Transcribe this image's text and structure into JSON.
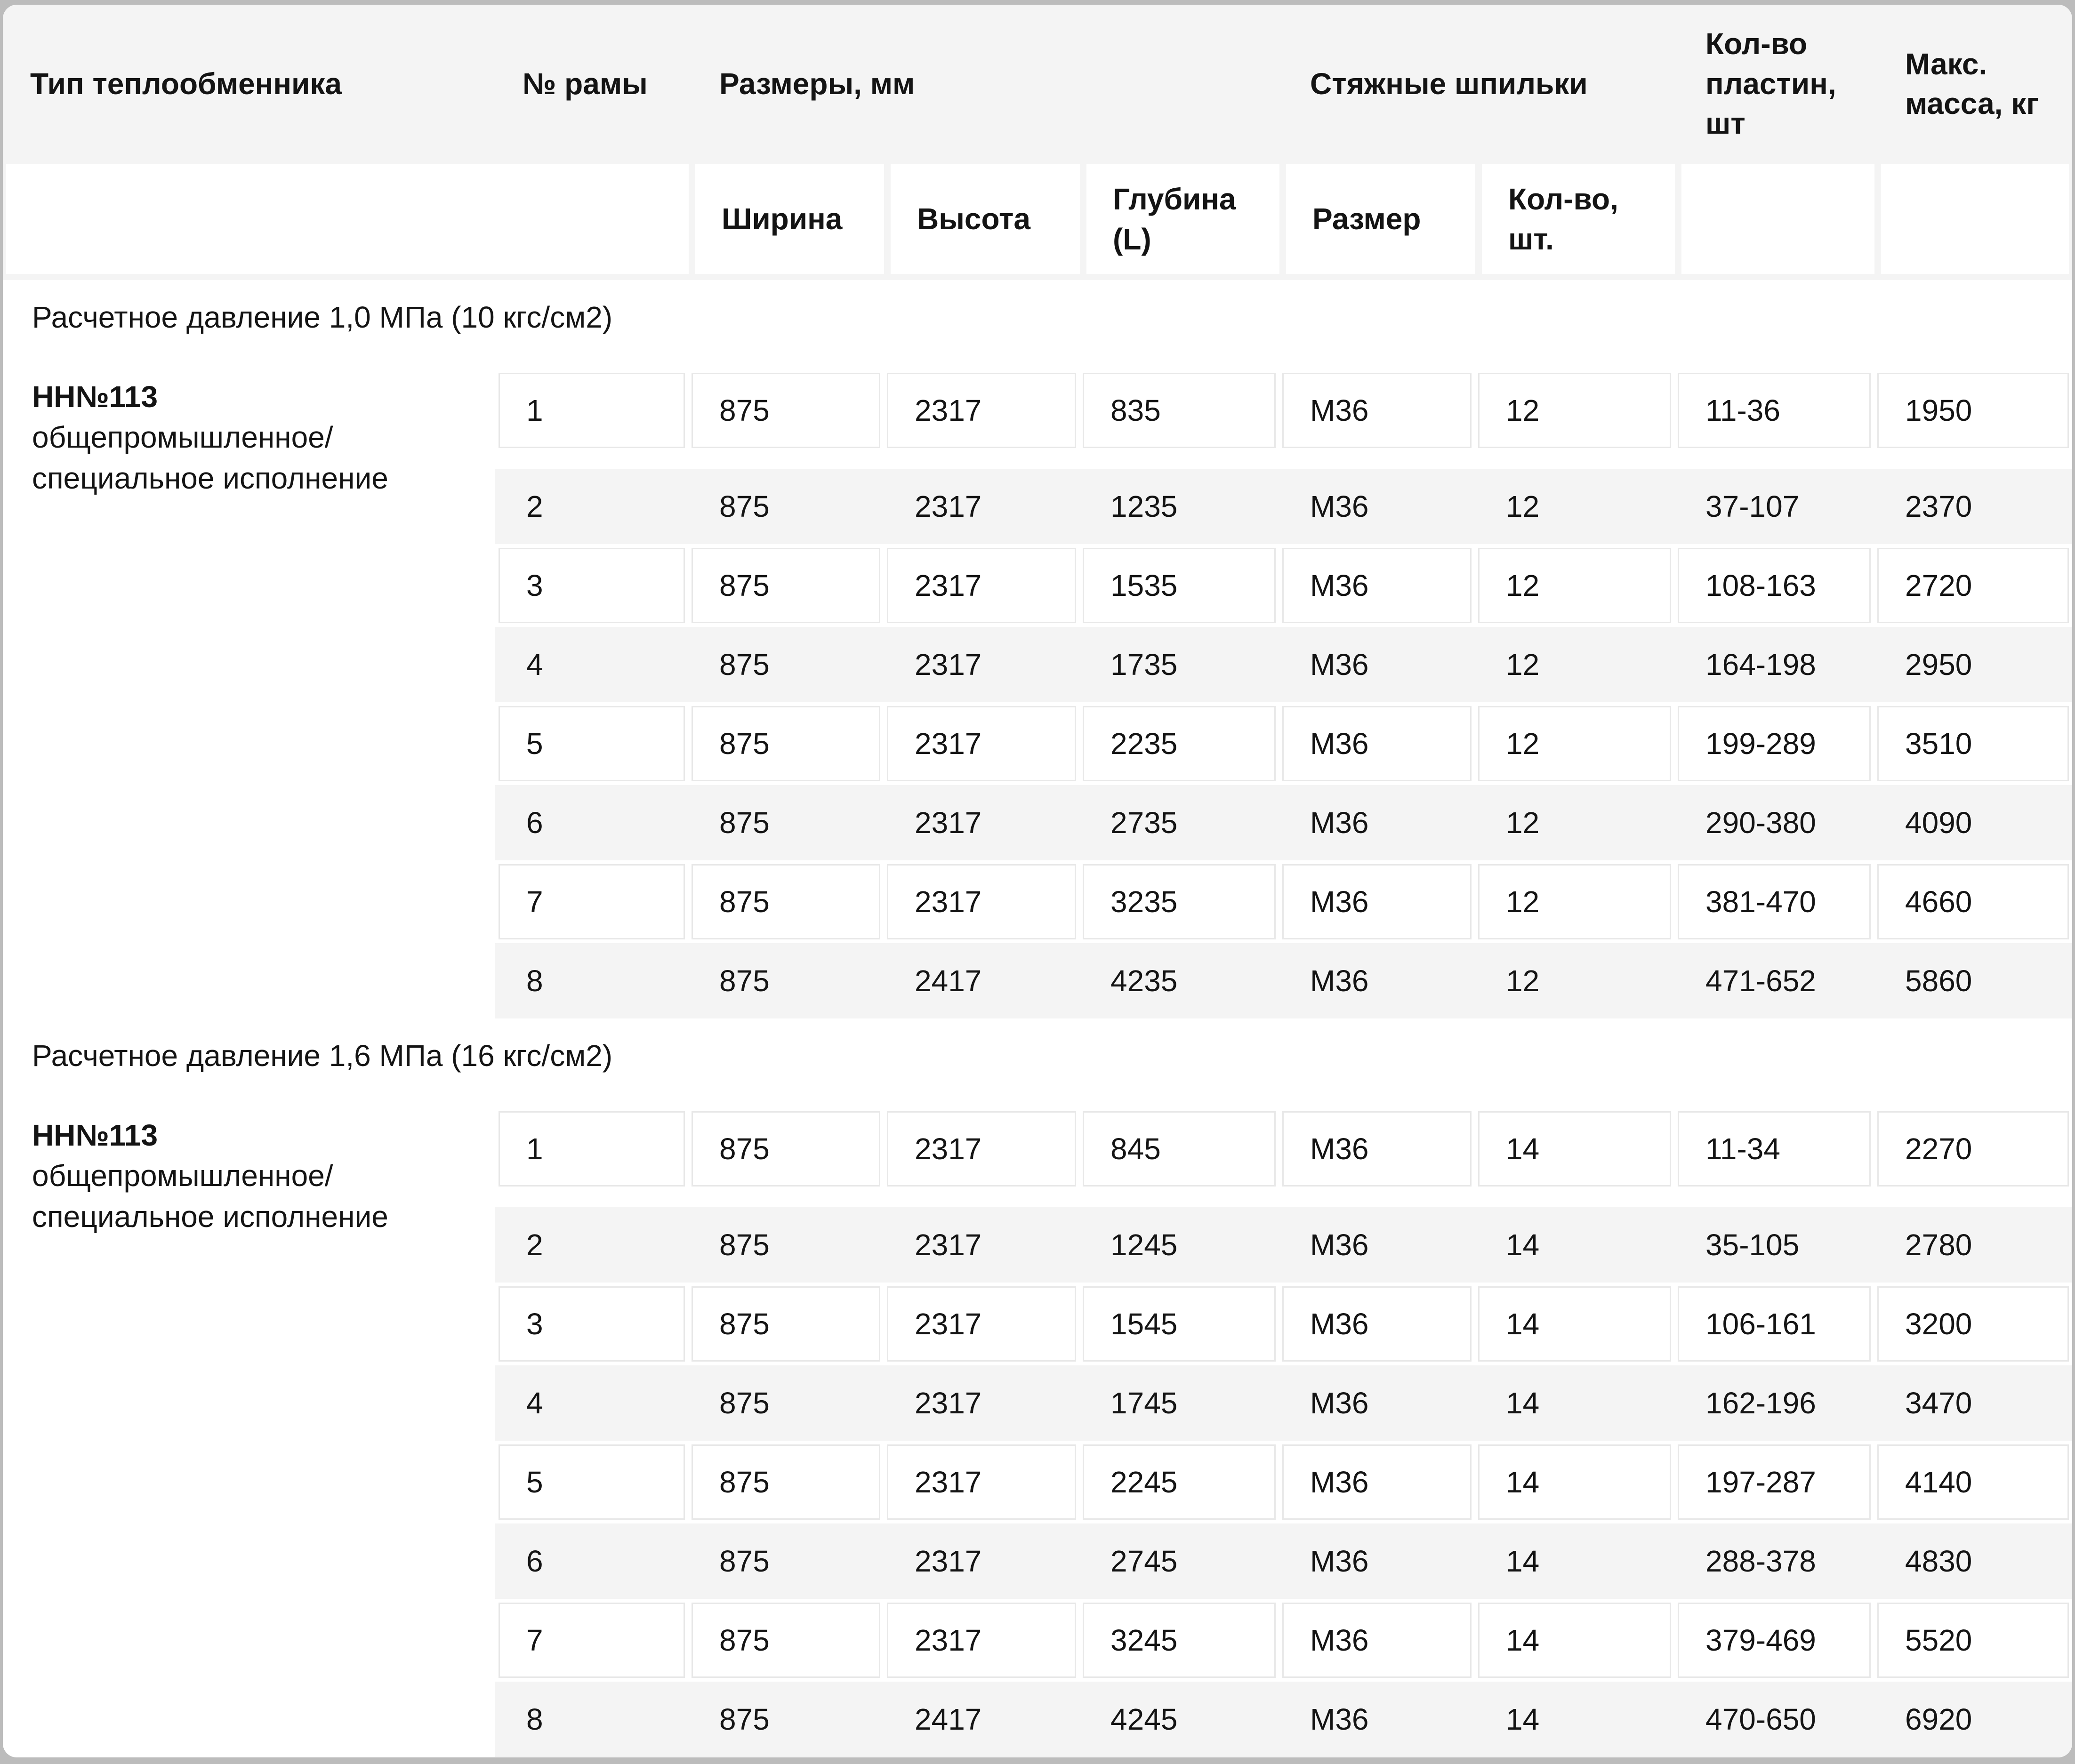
{
  "table": {
    "header": {
      "type": "Тип теплообменника",
      "frame": "№ рамы",
      "dimensions": "Размеры, мм",
      "studs": "Стяжные шпильки",
      "plates": "Кол-во пластин, шт",
      "mass": "Макс. масса, кг",
      "sub_width": "Ширина",
      "sub_height": "Высота",
      "sub_depth": "Глубина (L)",
      "sub_size": "Размер",
      "sub_qty": "Кол-во, шт."
    },
    "column_keys": [
      "frame",
      "width",
      "height",
      "depth",
      "stud_size",
      "stud_qty",
      "plates",
      "mass"
    ],
    "sections": [
      {
        "pressure_label": "Расчетное давление 1,0 МПа (10 кгс/см2)",
        "type_name": "НН№113",
        "type_desc_line1": "общепромышленное/",
        "type_desc_line2": "специальное исполнение",
        "rows": [
          {
            "frame": "1",
            "width": "875",
            "height": "2317",
            "depth": "835",
            "stud_size": "М36",
            "stud_qty": "12",
            "plates": "11-36",
            "mass": "1950"
          },
          {
            "frame": "2",
            "width": "875",
            "height": "2317",
            "depth": "1235",
            "stud_size": "М36",
            "stud_qty": "12",
            "plates": "37-107",
            "mass": "2370"
          },
          {
            "frame": "3",
            "width": "875",
            "height": "2317",
            "depth": "1535",
            "stud_size": "М36",
            "stud_qty": "12",
            "plates": "108-163",
            "mass": "2720"
          },
          {
            "frame": "4",
            "width": "875",
            "height": "2317",
            "depth": "1735",
            "stud_size": "М36",
            "stud_qty": "12",
            "plates": "164-198",
            "mass": "2950"
          },
          {
            "frame": "5",
            "width": "875",
            "height": "2317",
            "depth": "2235",
            "stud_size": "М36",
            "stud_qty": "12",
            "plates": "199-289",
            "mass": "3510"
          },
          {
            "frame": "6",
            "width": "875",
            "height": "2317",
            "depth": "2735",
            "stud_size": "М36",
            "stud_qty": "12",
            "plates": "290-380",
            "mass": "4090"
          },
          {
            "frame": "7",
            "width": "875",
            "height": "2317",
            "depth": "3235",
            "stud_size": "М36",
            "stud_qty": "12",
            "plates": "381-470",
            "mass": "4660"
          },
          {
            "frame": "8",
            "width": "875",
            "height": "2417",
            "depth": "4235",
            "stud_size": "М36",
            "stud_qty": "12",
            "plates": "471-652",
            "mass": "5860"
          }
        ]
      },
      {
        "pressure_label": "Расчетное давление 1,6 МПа (16 кгс/см2)",
        "type_name": "НН№113",
        "type_desc_line1": "общепромышленное/",
        "type_desc_line2": "специальное исполнение",
        "rows": [
          {
            "frame": "1",
            "width": "875",
            "height": "2317",
            "depth": "845",
            "stud_size": "М36",
            "stud_qty": "14",
            "plates": "11-34",
            "mass": "2270"
          },
          {
            "frame": "2",
            "width": "875",
            "height": "2317",
            "depth": "1245",
            "stud_size": "М36",
            "stud_qty": "14",
            "plates": "35-105",
            "mass": "2780"
          },
          {
            "frame": "3",
            "width": "875",
            "height": "2317",
            "depth": "1545",
            "stud_size": "М36",
            "stud_qty": "14",
            "plates": "106-161",
            "mass": "3200"
          },
          {
            "frame": "4",
            "width": "875",
            "height": "2317",
            "depth": "1745",
            "stud_size": "М36",
            "stud_qty": "14",
            "plates": "162-196",
            "mass": "3470"
          },
          {
            "frame": "5",
            "width": "875",
            "height": "2317",
            "depth": "2245",
            "stud_size": "М36",
            "stud_qty": "14",
            "plates": "197-287",
            "mass": "4140"
          },
          {
            "frame": "6",
            "width": "875",
            "height": "2317",
            "depth": "2745",
            "stud_size": "М36",
            "stud_qty": "14",
            "plates": "288-378",
            "mass": "4830"
          },
          {
            "frame": "7",
            "width": "875",
            "height": "2317",
            "depth": "3245",
            "stud_size": "М36",
            "stud_qty": "14",
            "plates": "379-469",
            "mass": "5520"
          },
          {
            "frame": "8",
            "width": "875",
            "height": "2417",
            "depth": "4245",
            "stud_size": "М36",
            "stud_qty": "14",
            "plates": "470-650",
            "mass": "6920"
          }
        ]
      }
    ]
  },
  "colors": {
    "page_frame": "#bcbcbc",
    "card_bg": "#ffffff",
    "header_bg": "#f4f4f4",
    "stripe_bg": "#f4f4f4",
    "cell_border": "#e8e8e8",
    "text": "#141414"
  }
}
